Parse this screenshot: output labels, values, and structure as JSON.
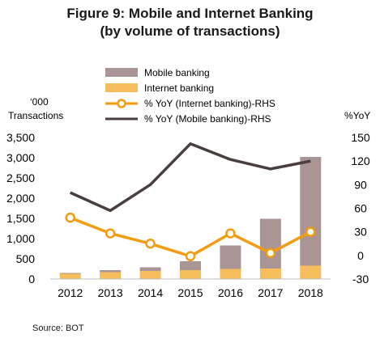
{
  "chart_data": {
    "type": "bar",
    "title": "Figure 9: Mobile and Internet Banking",
    "subtitle": "(by volume of transactions)",
    "ylabel_left_line1": "‘000",
    "ylabel_left_line2": "Transactions",
    "ylabel_right": "%YoY",
    "source": "Source: BOT",
    "categories": [
      "2012",
      "2013",
      "2014",
      "2015",
      "2016",
      "2017",
      "2018"
    ],
    "ylim_left": [
      0,
      3500
    ],
    "yticks_left": [
      "0",
      "500",
      "1,000",
      "1,500",
      "2,000",
      "2,500",
      "3,000",
      "3,500"
    ],
    "ylim_right": [
      -30,
      150
    ],
    "yticks_right": [
      "-30",
      "0",
      "30",
      "60",
      "90",
      "120",
      "150"
    ],
    "series": [
      {
        "name": "Mobile banking",
        "kind": "stacked-bar",
        "axis": "left",
        "color": "#a99593",
        "values": [
          20,
          50,
          90,
          220,
          580,
          1230,
          2690
        ]
      },
      {
        "name": "Internet banking",
        "kind": "stacked-bar",
        "axis": "left",
        "color": "#f6bd5c",
        "values": [
          130,
          170,
          200,
          220,
          250,
          260,
          330
        ]
      },
      {
        "name": "% YoY (Internet banking)-RHS",
        "kind": "line-marker",
        "axis": "right",
        "color": "#f39c12",
        "values": [
          48,
          28,
          15,
          -1,
          28,
          3,
          30
        ]
      },
      {
        "name": "% YoY (Mobile banking)-RHS",
        "kind": "line",
        "axis": "right",
        "color": "#4a3f3e",
        "values": [
          80,
          57,
          90,
          142,
          122,
          110,
          120
        ]
      }
    ],
    "legend_position": "top-center"
  }
}
